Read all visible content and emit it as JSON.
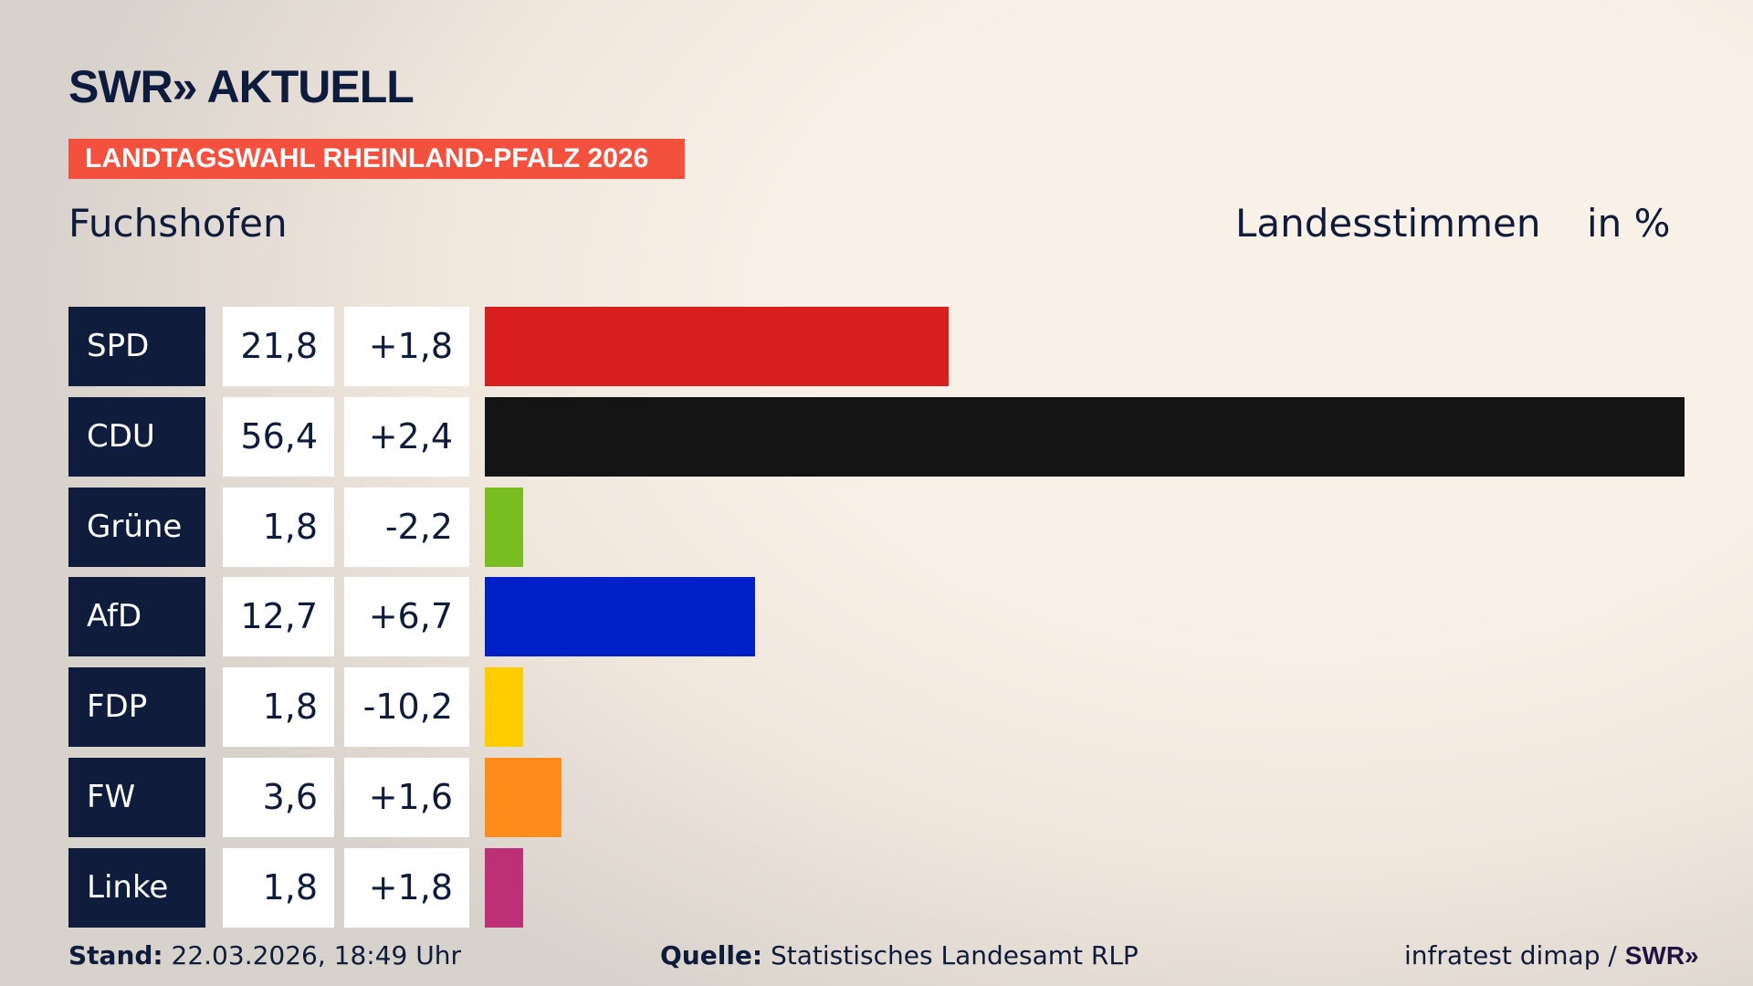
{
  "header": {
    "logo": "SWR» AKTUELL",
    "banner": "LANDTAGSWAHL RHEINLAND-PFALZ 2026",
    "place": "Fuchshofen",
    "metric": "Landesstimmen",
    "unit": "in %"
  },
  "chart_data": {
    "type": "bar",
    "orientation": "horizontal",
    "categories": [
      "SPD",
      "CDU",
      "Grüne",
      "AfD",
      "FDP",
      "FW",
      "Linke"
    ],
    "values": [
      21.8,
      56.4,
      1.8,
      12.7,
      1.8,
      3.6,
      1.8
    ],
    "value_labels": [
      "21,8",
      "56,4",
      "1,8",
      "12,7",
      "1,8",
      "3,6",
      "1,8"
    ],
    "changes": [
      "+1,8",
      "+2,4",
      "-2,2",
      "+6,7",
      "-10,2",
      "+1,6",
      "+1,8"
    ],
    "colors": [
      "#d81f1f",
      "#141414",
      "#78be20",
      "#0020c8",
      "#ffcc00",
      "#ff8c1a",
      "#be3075"
    ],
    "xlim": [
      0,
      56.4
    ]
  },
  "footer": {
    "stand_label": "Stand:",
    "stand": "22.03.2026, 18:49 Uhr",
    "quelle_label": "Quelle:",
    "quelle": "Statistisches Landesamt RLP",
    "credit": "infratest dimap / ",
    "credit_logo": "SWR»"
  }
}
